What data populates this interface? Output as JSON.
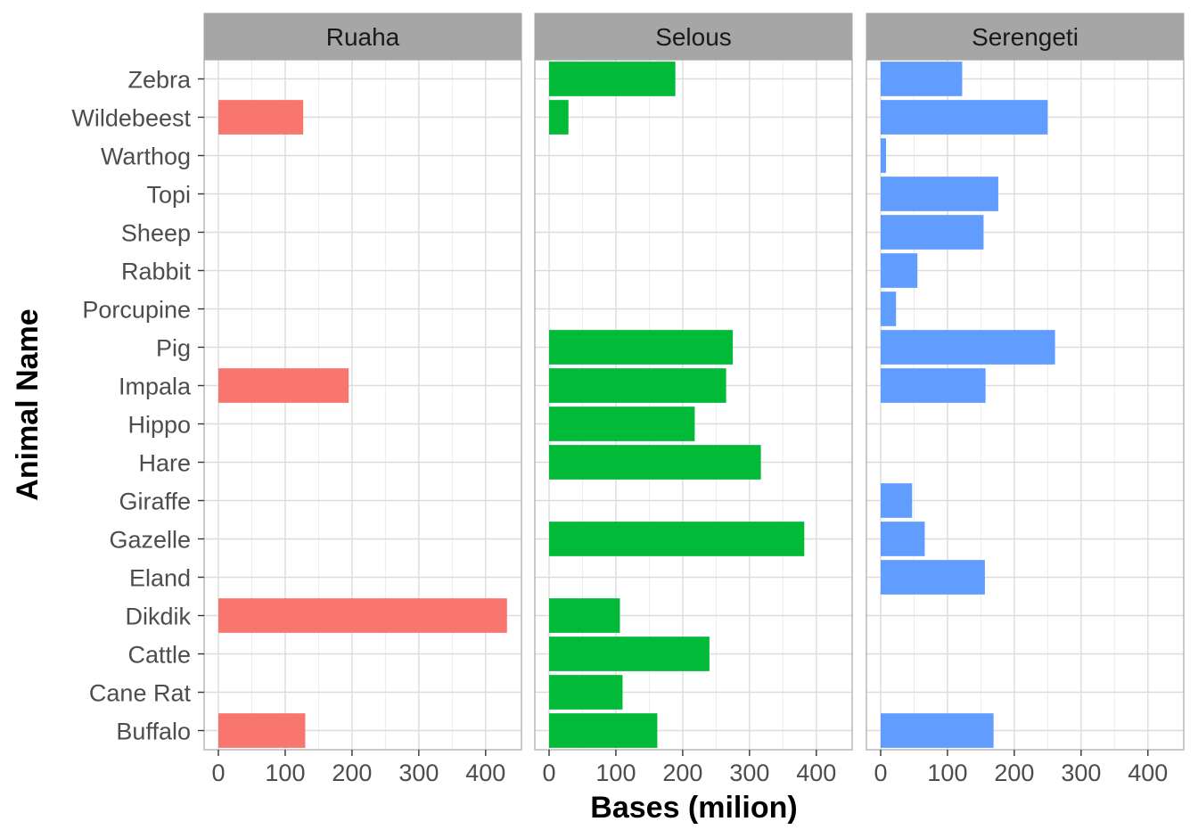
{
  "chart_data": {
    "type": "bar",
    "orientation": "horizontal",
    "facet_by": "site",
    "xlabel": "Bases (milion)",
    "ylabel": "Animal Name",
    "xlim": [
      0,
      430
    ],
    "xticks": [
      0,
      100,
      200,
      300,
      400
    ],
    "grid": true,
    "categories": [
      "Buffalo",
      "Cane Rat",
      "Cattle",
      "Dikdik",
      "Eland",
      "Gazelle",
      "Giraffe",
      "Hare",
      "Hippo",
      "Impala",
      "Pig",
      "Porcupine",
      "Rabbit",
      "Sheep",
      "Topi",
      "Warthog",
      "Wildebeest",
      "Zebra"
    ],
    "panels": [
      {
        "name": "Ruaha",
        "color": "#F8766D",
        "values": [
          130,
          null,
          null,
          432,
          null,
          null,
          null,
          null,
          null,
          195,
          null,
          null,
          null,
          null,
          null,
          null,
          127,
          null
        ]
      },
      {
        "name": "Selous",
        "color": "#00BA38",
        "values": [
          162,
          110,
          240,
          106,
          null,
          382,
          null,
          317,
          218,
          265,
          275,
          null,
          null,
          null,
          null,
          null,
          29,
          189
        ]
      },
      {
        "name": "Serengeti",
        "color": "#619CFF",
        "values": [
          169,
          null,
          null,
          null,
          156,
          66,
          47,
          null,
          null,
          157,
          261,
          23,
          55,
          154,
          176,
          8,
          250,
          122
        ]
      }
    ]
  }
}
